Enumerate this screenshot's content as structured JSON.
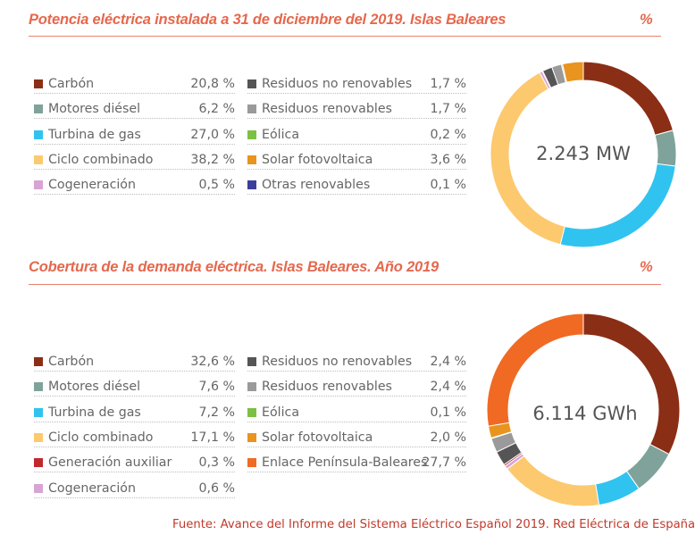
{
  "chart_data": [
    {
      "type": "pie",
      "title": "Potencia eléctrica instalada a 31 de diciembre del 2019. Islas Baleares",
      "unit": "%",
      "center_label": "2.243 MW",
      "slices": [
        {
          "label": "Carbón",
          "value": 20.8,
          "display": "20,8 %",
          "color": "#8b2e16"
        },
        {
          "label": "Motores diésel",
          "value": 6.2,
          "display": "6,2 %",
          "color": "#7fa39a"
        },
        {
          "label": "Turbina de gas",
          "value": 27.0,
          "display": "27,0 %",
          "color": "#31c3f0"
        },
        {
          "label": "Ciclo combinado",
          "value": 38.2,
          "display": "38,2 %",
          "color": "#fdc96e"
        },
        {
          "label": "Cogeneración",
          "value": 0.5,
          "display": "0,5 %",
          "color": "#d8a4d6"
        },
        {
          "label": "Residuos no renovables",
          "value": 1.7,
          "display": "1,7 %",
          "color": "#555555"
        },
        {
          "label": "Residuos renovables",
          "value": 1.7,
          "display": "1,7 %",
          "color": "#9a9a9a"
        },
        {
          "label": "Eólica",
          "value": 0.2,
          "display": "0,2 %",
          "color": "#7cc142"
        },
        {
          "label": "Solar fotovoltaica",
          "value": 3.6,
          "display": "3,6 %",
          "color": "#e8941e"
        },
        {
          "label": "Otras renovables",
          "value": 0.1,
          "display": "0,1 %",
          "color": "#3b3f9a"
        }
      ],
      "draw_order": [
        "Carbón",
        "Motores diésel",
        "Turbina de gas",
        "Ciclo combinado",
        "Cogeneración",
        "Otras renovables",
        "Residuos no renovables",
        "Residuos renovables",
        "Eólica",
        "Solar fotovoltaica"
      ]
    },
    {
      "type": "pie",
      "title": "Cobertura de la demanda eléctrica. Islas Baleares. Año 2019",
      "unit": "%",
      "center_label": "6.114 GWh",
      "slices": [
        {
          "label": "Carbón",
          "value": 32.6,
          "display": "32,6 %",
          "color": "#8b2e16"
        },
        {
          "label": "Motores diésel",
          "value": 7.6,
          "display": "7,6 %",
          "color": "#7fa39a"
        },
        {
          "label": "Turbina de gas",
          "value": 7.2,
          "display": "7,2 %",
          "color": "#31c3f0"
        },
        {
          "label": "Ciclo combinado",
          "value": 17.1,
          "display": "17,1 %",
          "color": "#fdc96e"
        },
        {
          "label": "Generación auxiliar",
          "value": 0.3,
          "display": "0,3 %",
          "color": "#c0282d"
        },
        {
          "label": "Cogeneración",
          "value": 0.6,
          "display": "0,6 %",
          "color": "#d8a4d6"
        },
        {
          "label": "Residuos no renovables",
          "value": 2.4,
          "display": "2,4 %",
          "color": "#555555"
        },
        {
          "label": "Residuos renovables",
          "value": 2.4,
          "display": "2,4 %",
          "color": "#9a9a9a"
        },
        {
          "label": "Eólica",
          "value": 0.1,
          "display": "0,1 %",
          "color": "#7cc142"
        },
        {
          "label": "Solar fotovoltaica",
          "value": 2.0,
          "display": "2,0 %",
          "color": "#e8941e"
        },
        {
          "label": "Enlace Península-Baleares",
          "value": 27.7,
          "display": "27,7 %",
          "color": "#f06a24"
        }
      ],
      "draw_order": [
        "Carbón",
        "Motores diésel",
        "Turbina de gas",
        "Ciclo combinado",
        "Cogeneración",
        "Generación auxiliar",
        "Residuos no renovables",
        "Residuos renovables",
        "Eólica",
        "Solar fotovoltaica",
        "Enlace Península-Baleares"
      ]
    }
  ],
  "source": "Fuente: Avance del Informe del Sistema Eléctrico Español 2019. Red Eléctrica de España"
}
